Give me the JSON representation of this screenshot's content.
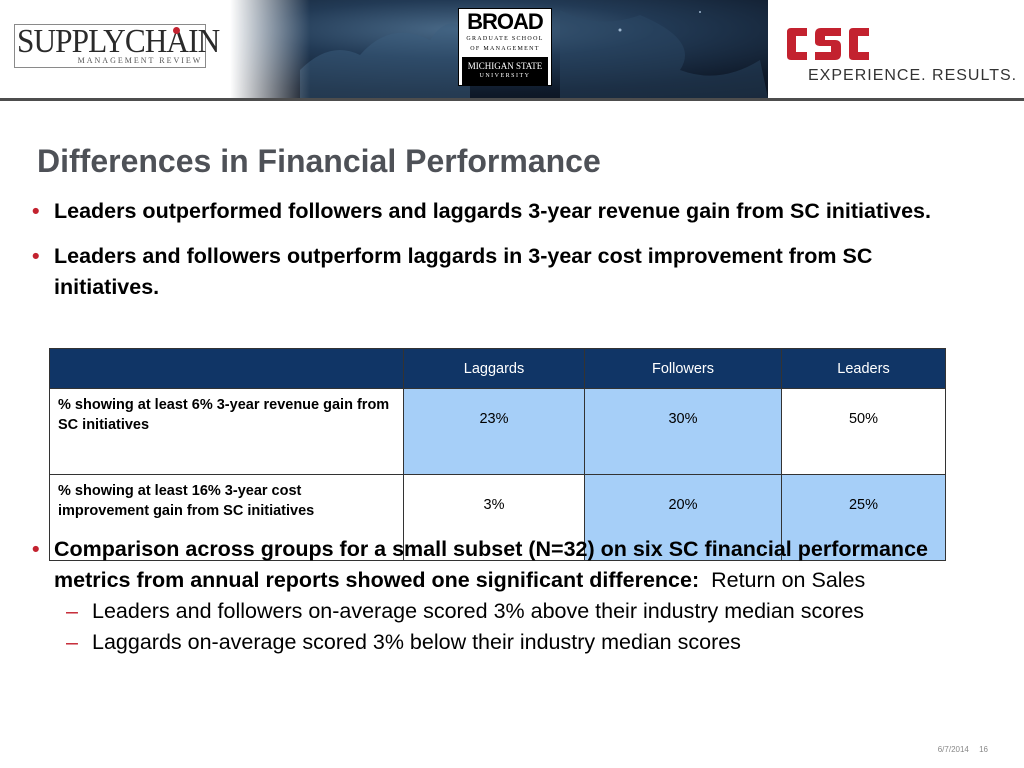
{
  "header": {
    "supply_chain_logo": {
      "main": "SUPPLYCHAIN",
      "sub": "MANAGEMENT REVIEW"
    },
    "broad_logo": {
      "line1": "BROAD",
      "line2": "GRADUATE SCHOOL",
      "line3": "OF MANAGEMENT",
      "line4": "MICHIGAN STATE",
      "line5": "UNIVERSITY"
    },
    "csc_logo": {
      "mark": "CSC",
      "tagline": "EXPERIENCE. RESULTS."
    }
  },
  "title": "Differences in Financial Performance",
  "bullets": [
    "Leaders outperformed followers and laggards 3-year revenue gain from SC initiatives.",
    "Leaders and followers outperform laggards in 3-year cost improvement from SC initiatives."
  ],
  "table": {
    "headers": [
      "",
      "Laggards",
      "Followers",
      "Leaders"
    ],
    "rows": [
      {
        "label": "% showing at least 6% 3-year revenue gain from SC initiatives",
        "values": [
          "23%",
          "30%",
          "50%"
        ]
      },
      {
        "label": "% showing at least 16% 3-year cost improvement gain from SC initiatives",
        "values": [
          "3%",
          "20%",
          "25%"
        ]
      }
    ]
  },
  "bullet3": {
    "bold": "Comparison across groups for a small subset (N=32) on six SC financial performance metrics from annual reports showed one significant difference:",
    "normal": "Return on Sales",
    "subs": [
      "Leaders and followers on-average scored 3% above their industry median scores",
      "Laggards on-average scored 3% below their industry median scores"
    ]
  },
  "footer": {
    "date": "6/7/2014",
    "page": "16"
  },
  "colors": {
    "title": "#4e5157",
    "bullet_mark": "#c3222f",
    "table_header": "#103566",
    "table_highlight": "#a6cff8",
    "csc_red": "#c3222f"
  }
}
